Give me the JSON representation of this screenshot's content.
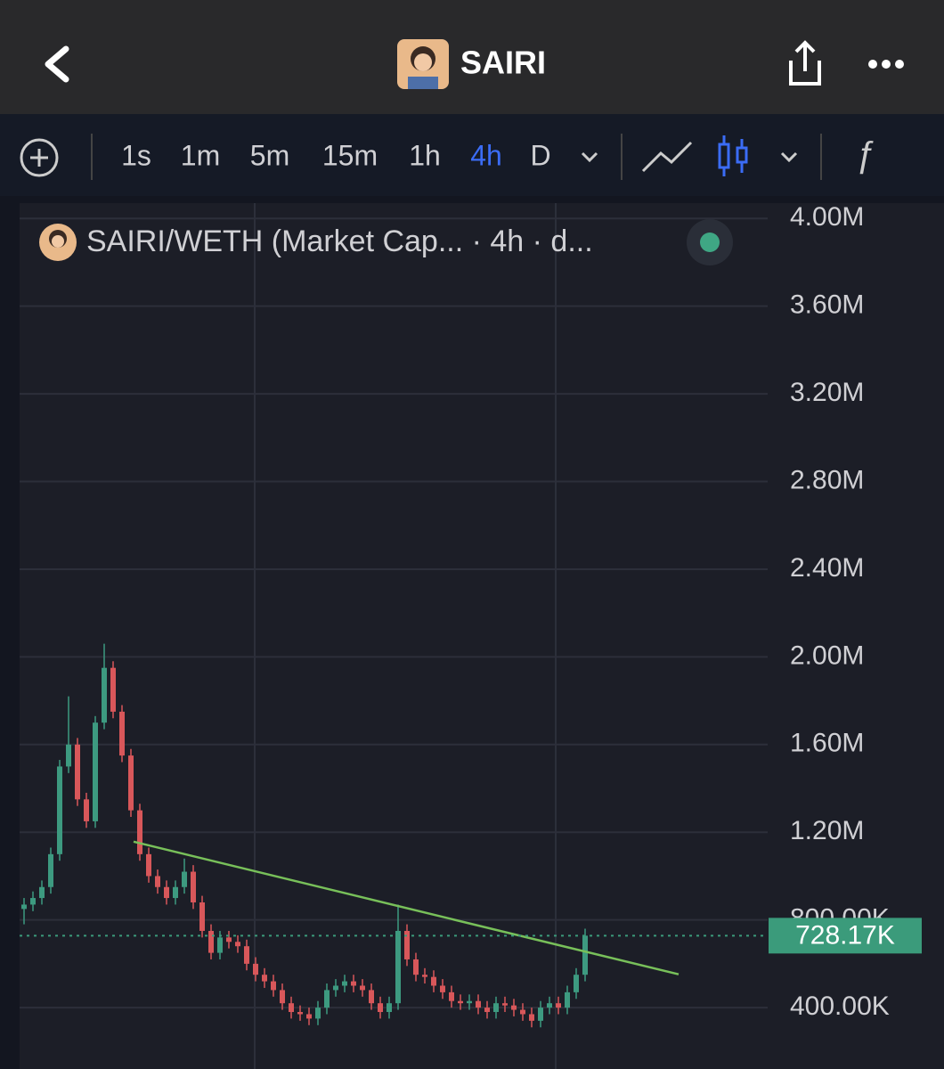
{
  "header": {
    "title": "SAIRI"
  },
  "toolbar": {
    "intervals": [
      "1s",
      "1m",
      "5m",
      "15m",
      "1h",
      "4h",
      "D"
    ],
    "active_interval_index": 5
  },
  "chart_data": {
    "type": "candlestick",
    "legend_title": "SAIRI/WETH (Market Cap... · 4h · d...",
    "open": [
      850000,
      870000,
      900000,
      950000,
      1100000,
      1500000,
      1600000,
      1350000,
      1250000,
      1700000,
      1950000,
      1750000,
      1550000,
      1300000,
      1100000,
      1000000,
      950000,
      900000,
      950000,
      1020000,
      880000,
      750000,
      650000,
      720000,
      700000,
      680000,
      600000,
      550000,
      520000,
      480000,
      420000,
      380000,
      370000,
      350000,
      400000,
      480000,
      500000,
      520000,
      500000,
      480000,
      420000,
      380000,
      420000,
      750000,
      620000,
      550000,
      540000,
      500000,
      470000,
      430000,
      420000,
      430000,
      400000,
      380000,
      420000,
      410000,
      390000,
      370000,
      340000,
      400000,
      420000,
      400000,
      470000,
      550000
    ],
    "high": [
      900000,
      930000,
      980000,
      1130000,
      1530000,
      1820000,
      1630000,
      1380000,
      1730000,
      2060000,
      1980000,
      1780000,
      1580000,
      1330000,
      1130000,
      1030000,
      980000,
      980000,
      1080000,
      1050000,
      910000,
      780000,
      750000,
      750000,
      730000,
      710000,
      630000,
      580000,
      550000,
      510000,
      450000,
      410000,
      400000,
      430000,
      510000,
      530000,
      550000,
      550000,
      530000,
      510000,
      450000,
      450000,
      870000,
      780000,
      650000,
      580000,
      570000,
      530000,
      500000,
      460000,
      460000,
      460000,
      430000,
      450000,
      450000,
      440000,
      420000,
      400000,
      430000,
      450000,
      450000,
      500000,
      580000,
      760000
    ],
    "low": [
      780000,
      840000,
      870000,
      920000,
      1070000,
      1470000,
      1320000,
      1220000,
      1220000,
      1670000,
      1720000,
      1520000,
      1270000,
      1070000,
      970000,
      920000,
      870000,
      870000,
      920000,
      850000,
      720000,
      620000,
      620000,
      670000,
      650000,
      570000,
      520000,
      490000,
      450000,
      390000,
      350000,
      340000,
      320000,
      320000,
      370000,
      450000,
      470000,
      470000,
      450000,
      390000,
      350000,
      350000,
      390000,
      590000,
      520000,
      510000,
      470000,
      440000,
      400000,
      390000,
      390000,
      370000,
      350000,
      350000,
      380000,
      360000,
      340000,
      310000,
      310000,
      370000,
      370000,
      370000,
      440000,
      520000
    ],
    "close": [
      870000,
      900000,
      950000,
      1100000,
      1500000,
      1600000,
      1350000,
      1250000,
      1700000,
      1950000,
      1750000,
      1550000,
      1300000,
      1100000,
      1000000,
      950000,
      900000,
      950000,
      1020000,
      880000,
      750000,
      650000,
      720000,
      700000,
      680000,
      600000,
      550000,
      520000,
      480000,
      420000,
      380000,
      370000,
      350000,
      400000,
      480000,
      500000,
      520000,
      500000,
      480000,
      420000,
      380000,
      420000,
      750000,
      620000,
      550000,
      540000,
      500000,
      470000,
      430000,
      420000,
      430000,
      400000,
      380000,
      420000,
      410000,
      390000,
      370000,
      340000,
      400000,
      420000,
      400000,
      470000,
      550000,
      728170
    ],
    "up_color": "#3d9a80",
    "down_color": "#d8575a",
    "current_price": {
      "value": 728170,
      "label": "728.17K"
    },
    "current_price_color": "#3b9b7b",
    "trendline": {
      "x": [
        12.3,
        73.5
      ],
      "y": [
        1157000,
        552000
      ],
      "color": "#78c05a"
    },
    "xlim": [
      -0.5,
      83.5
    ],
    "xticks": [
      25.9,
      59.7
    ],
    "ylim": [
      120000,
      4070000
    ],
    "yticks": [
      {
        "value": 400000,
        "label": "400.00K"
      },
      {
        "value": 800000,
        "label": "800.00K"
      },
      {
        "value": 1200000,
        "label": "1.20M"
      },
      {
        "value": 1600000,
        "label": "1.60M"
      },
      {
        "value": 2000000,
        "label": "2.00M"
      },
      {
        "value": 2400000,
        "label": "2.40M"
      },
      {
        "value": 2800000,
        "label": "2.80M"
      },
      {
        "value": 3200000,
        "label": "3.20M"
      },
      {
        "value": 3600000,
        "label": "3.60M"
      },
      {
        "value": 4000000,
        "label": "4.00M"
      }
    ],
    "grid": true
  }
}
